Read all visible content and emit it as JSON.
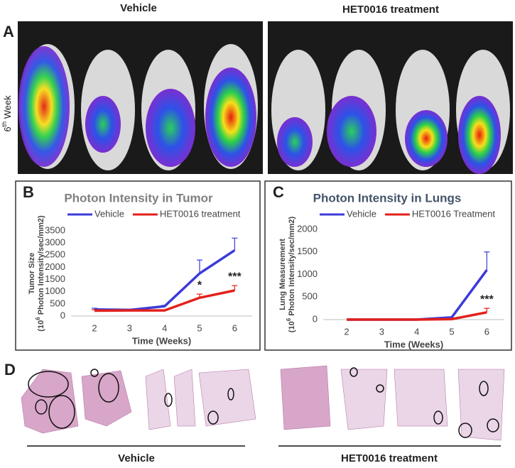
{
  "panel_labels": [
    "A",
    "B",
    "C",
    "D"
  ],
  "top_headers": [
    "Vehicle",
    "HET0016 treatment"
  ],
  "side_label": {
    "number": "6",
    "suffix": "th",
    "word": " Week"
  },
  "bottom_labels": [
    "Vehicle",
    "HET0016 treatment"
  ],
  "chart_data": [
    {
      "type": "line",
      "title": "Photon Intensity in Tumor",
      "title_color": "#7f7f7f",
      "ylabel": "Tumor Size",
      "ylabel_unit": {
        "base": "(10",
        "exp": "6",
        "rest": " Photon Intensity/sec/mm2)"
      },
      "xlabel": "Time (Weeks)",
      "x": [
        2,
        3,
        4,
        5,
        6
      ],
      "xlim": [
        1.33,
        6.5
      ],
      "xticks": [
        2,
        3,
        4,
        5,
        6
      ],
      "ylim": [
        0,
        3500
      ],
      "yticks": [
        0,
        500,
        1000,
        1500,
        2000,
        2500,
        3000,
        3500
      ],
      "series": [
        {
          "name": "Vehicle",
          "color": "#3b3bd9",
          "values": [
            270,
            250,
            400,
            1750,
            2700
          ],
          "errors": [
            50,
            30,
            40,
            550,
            500
          ]
        },
        {
          "name": "HET0016 treatment",
          "color": "#e3201b",
          "values": [
            220,
            230,
            230,
            750,
            1050
          ],
          "errors": [
            40,
            30,
            30,
            150,
            200
          ]
        }
      ],
      "annotations": [
        {
          "text": "*",
          "x": 5
        },
        {
          "text": "***",
          "x": 6
        }
      ]
    },
    {
      "type": "line",
      "title": "Photon Intensity in Lungs",
      "title_color": "#44546a",
      "ylabel": "Lung Measurement",
      "ylabel_unit": {
        "base": "(10",
        "exp": "6",
        "rest": " Photon Intensity/sec/mm2)"
      },
      "xlabel": "Time (Weeks)",
      "x": [
        2,
        3,
        4,
        5,
        6
      ],
      "xlim": [
        1.33,
        6.5
      ],
      "xticks": [
        2,
        3,
        4,
        5,
        6
      ],
      "ylim": [
        0,
        2000
      ],
      "yticks": [
        0,
        500,
        1000,
        1500,
        2000
      ],
      "series": [
        {
          "name": "Vehicle",
          "color": "#3b3bd9",
          "values": [
            0,
            0,
            0,
            50,
            1100
          ],
          "errors": [
            null,
            null,
            null,
            null,
            400
          ]
        },
        {
          "name": "HET0016 Treatment",
          "color": "#e3201b",
          "values": [
            0,
            0,
            0,
            10,
            160
          ],
          "errors": [
            null,
            null,
            null,
            null,
            90
          ]
        }
      ],
      "annotations": [
        {
          "text": "***",
          "x": 6
        }
      ]
    }
  ]
}
